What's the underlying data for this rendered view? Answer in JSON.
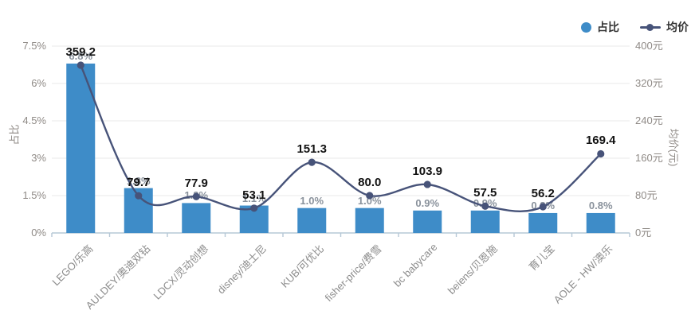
{
  "legend": {
    "bar_label": "占比",
    "line_label": "均价"
  },
  "colors": {
    "bar": "#3e8cc8",
    "line": "#475379",
    "grid": "#e9e9e9",
    "axis_line": "#b6c8d6",
    "tick_text": "#8f8a86",
    "pct_label_text": "#8a929c",
    "price_label_text": "#121212"
  },
  "chart_data": {
    "type": "combo-bar-line",
    "categories": [
      "LEGO/乐高",
      "AULDEY/奥迪双钻",
      "LDCX/灵动创想",
      "disney/迪士尼",
      "KUB/可优比",
      "fisher-price/费雪",
      "bc babycare",
      "beiens/贝恩施",
      "育儿宝",
      "AOLE - HW/澳乐"
    ],
    "series": [
      {
        "name": "占比",
        "type": "bar",
        "axis": "left",
        "unit": "%",
        "values": [
          6.8,
          1.8,
          1.2,
          1.1,
          1.0,
          1.0,
          0.9,
          0.9,
          0.8,
          0.8
        ],
        "labels": [
          "6.8%",
          "1.8%",
          "1.2%",
          "1.1%",
          "1.0%",
          "1.0%",
          "0.9%",
          "0.9%",
          "0.8%",
          "0.8%"
        ]
      },
      {
        "name": "均价",
        "type": "line",
        "axis": "right",
        "unit": "元",
        "smooth": true,
        "values": [
          359.2,
          79.7,
          77.9,
          53.1,
          151.3,
          80.0,
          103.9,
          57.5,
          56.2,
          169.4
        ],
        "labels": [
          "359.2",
          "79.7",
          "77.9",
          "53.1",
          "151.3",
          "80.0",
          "103.9",
          "57.5",
          "56.2",
          "169.4"
        ]
      }
    ],
    "left_axis": {
      "name": "占比",
      "ticks": [
        "7.5%",
        "6%",
        "4.5%",
        "3%",
        "1.5%",
        "0%"
      ],
      "min": 0,
      "max": 7.5
    },
    "right_axis": {
      "name": "均价(元)",
      "ticks": [
        "400元",
        "320元",
        "240元",
        "160元",
        "80元",
        "0元"
      ],
      "min": 0,
      "max": 400
    },
    "grid": true,
    "legend_position": "top-right"
  }
}
